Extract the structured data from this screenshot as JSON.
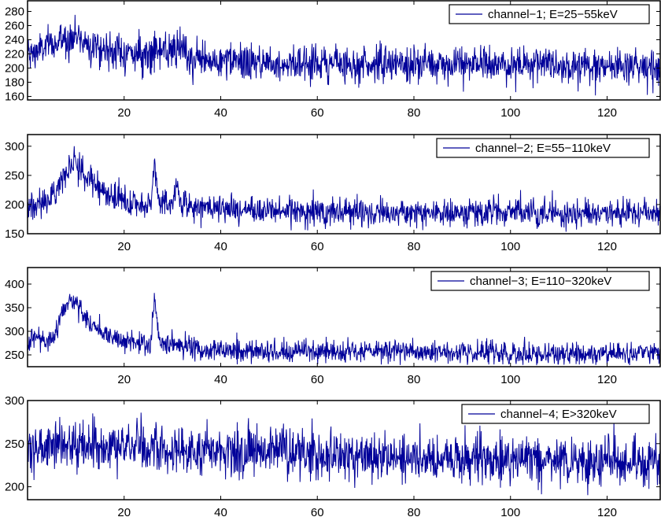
{
  "chart_data": [
    {
      "type": "line",
      "title": "",
      "xlabel": "",
      "ylabel": "",
      "xlim": [
        0,
        131
      ],
      "ylim": [
        155,
        295
      ],
      "xticks": [
        20,
        40,
        60,
        80,
        100,
        120
      ],
      "yticks": [
        160,
        180,
        200,
        220,
        240,
        260,
        280
      ],
      "legend_position": "top-right",
      "series": [
        {
          "name": "channel−1; E=25−55keV",
          "color": "#000099",
          "points_per_unit": 12,
          "noise_std": 13,
          "min": 158,
          "max": 295,
          "profile": [
            [
              0,
              215
            ],
            [
              2,
              225
            ],
            [
              5,
              232
            ],
            [
              8,
              242
            ],
            [
              10,
              245
            ],
            [
              12,
              238
            ],
            [
              15,
              228
            ],
            [
              20,
              222
            ],
            [
              25,
              218
            ],
            [
              26.3,
              235
            ],
            [
              27,
              222
            ],
            [
              30,
              220
            ],
            [
              31,
              230
            ],
            [
              33,
              215
            ],
            [
              37,
              210
            ],
            [
              45,
              208
            ],
            [
              60,
              207
            ],
            [
              80,
              205
            ],
            [
              100,
              205
            ],
            [
              120,
              205
            ],
            [
              131,
              203
            ]
          ]
        }
      ]
    },
    {
      "type": "line",
      "title": "",
      "xlabel": "",
      "ylabel": "",
      "xlim": [
        0,
        131
      ],
      "ylim": [
        150,
        320
      ],
      "xticks": [
        20,
        40,
        60,
        80,
        100,
        120
      ],
      "yticks": [
        150,
        200,
        250,
        300
      ],
      "legend_position": "top-right",
      "series": [
        {
          "name": "channel−2; E=55−110keV",
          "color": "#000099",
          "points_per_unit": 12,
          "noise_std": 12,
          "min": 152,
          "max": 318,
          "profile": [
            [
              0,
              195
            ],
            [
              2,
              200
            ],
            [
              4,
              205
            ],
            [
              6,
              225
            ],
            [
              8,
              260
            ],
            [
              9.5,
              275
            ],
            [
              11,
              260
            ],
            [
              13,
              245
            ],
            [
              15,
              225
            ],
            [
              17,
              215
            ],
            [
              20,
              205
            ],
            [
              23,
              198
            ],
            [
              25.5,
              200
            ],
            [
              26.3,
              270
            ],
            [
              27.2,
              205
            ],
            [
              30,
              200
            ],
            [
              31,
              235
            ],
            [
              32,
              200
            ],
            [
              40,
              192
            ],
            [
              60,
              188
            ],
            [
              80,
              186
            ],
            [
              100,
              186
            ],
            [
              120,
              186
            ],
            [
              131,
              185
            ]
          ]
        }
      ]
    },
    {
      "type": "line",
      "title": "",
      "xlabel": "",
      "ylabel": "",
      "xlim": [
        0,
        131
      ],
      "ylim": [
        225,
        435
      ],
      "xticks": [
        20,
        40,
        60,
        80,
        100,
        120
      ],
      "yticks": [
        250,
        300,
        350,
        400
      ],
      "legend_position": "top-right",
      "series": [
        {
          "name": "channel−3; E=110−320keV",
          "color": "#000099",
          "points_per_unit": 12,
          "noise_std": 12,
          "min": 228,
          "max": 430,
          "profile": [
            [
              0,
              265
            ],
            [
              2,
              290
            ],
            [
              4,
              280
            ],
            [
              6,
              300
            ],
            [
              7.5,
              350
            ],
            [
              9,
              370
            ],
            [
              10.5,
              350
            ],
            [
              13,
              320
            ],
            [
              15,
              300
            ],
            [
              17,
              290
            ],
            [
              20,
              278
            ],
            [
              25.5,
              272
            ],
            [
              26.3,
              370
            ],
            [
              27.2,
              280
            ],
            [
              30,
              272
            ],
            [
              35,
              262
            ],
            [
              45,
              258
            ],
            [
              60,
              256
            ],
            [
              80,
              255
            ],
            [
              100,
              254
            ],
            [
              120,
              252
            ],
            [
              131,
              252
            ]
          ]
        }
      ]
    },
    {
      "type": "line",
      "title": "",
      "xlabel": "",
      "ylabel": "",
      "xlim": [
        0,
        131
      ],
      "ylim": [
        185,
        300
      ],
      "xticks": [
        20,
        40,
        60,
        80,
        100,
        120
      ],
      "yticks": [
        200,
        250,
        300
      ],
      "legend_position": "top-right",
      "series": [
        {
          "name": "channel−4; E>320keV",
          "color": "#000099",
          "points_per_unit": 12,
          "noise_std": 14,
          "min": 188,
          "max": 298,
          "profile": [
            [
              0,
              245
            ],
            [
              10,
              248
            ],
            [
              20,
              246
            ],
            [
              40,
              240
            ],
            [
              55,
              242
            ],
            [
              60,
              238
            ],
            [
              80,
              233
            ],
            [
              100,
              232
            ],
            [
              120,
              230
            ],
            [
              131,
              228
            ]
          ]
        }
      ]
    }
  ]
}
